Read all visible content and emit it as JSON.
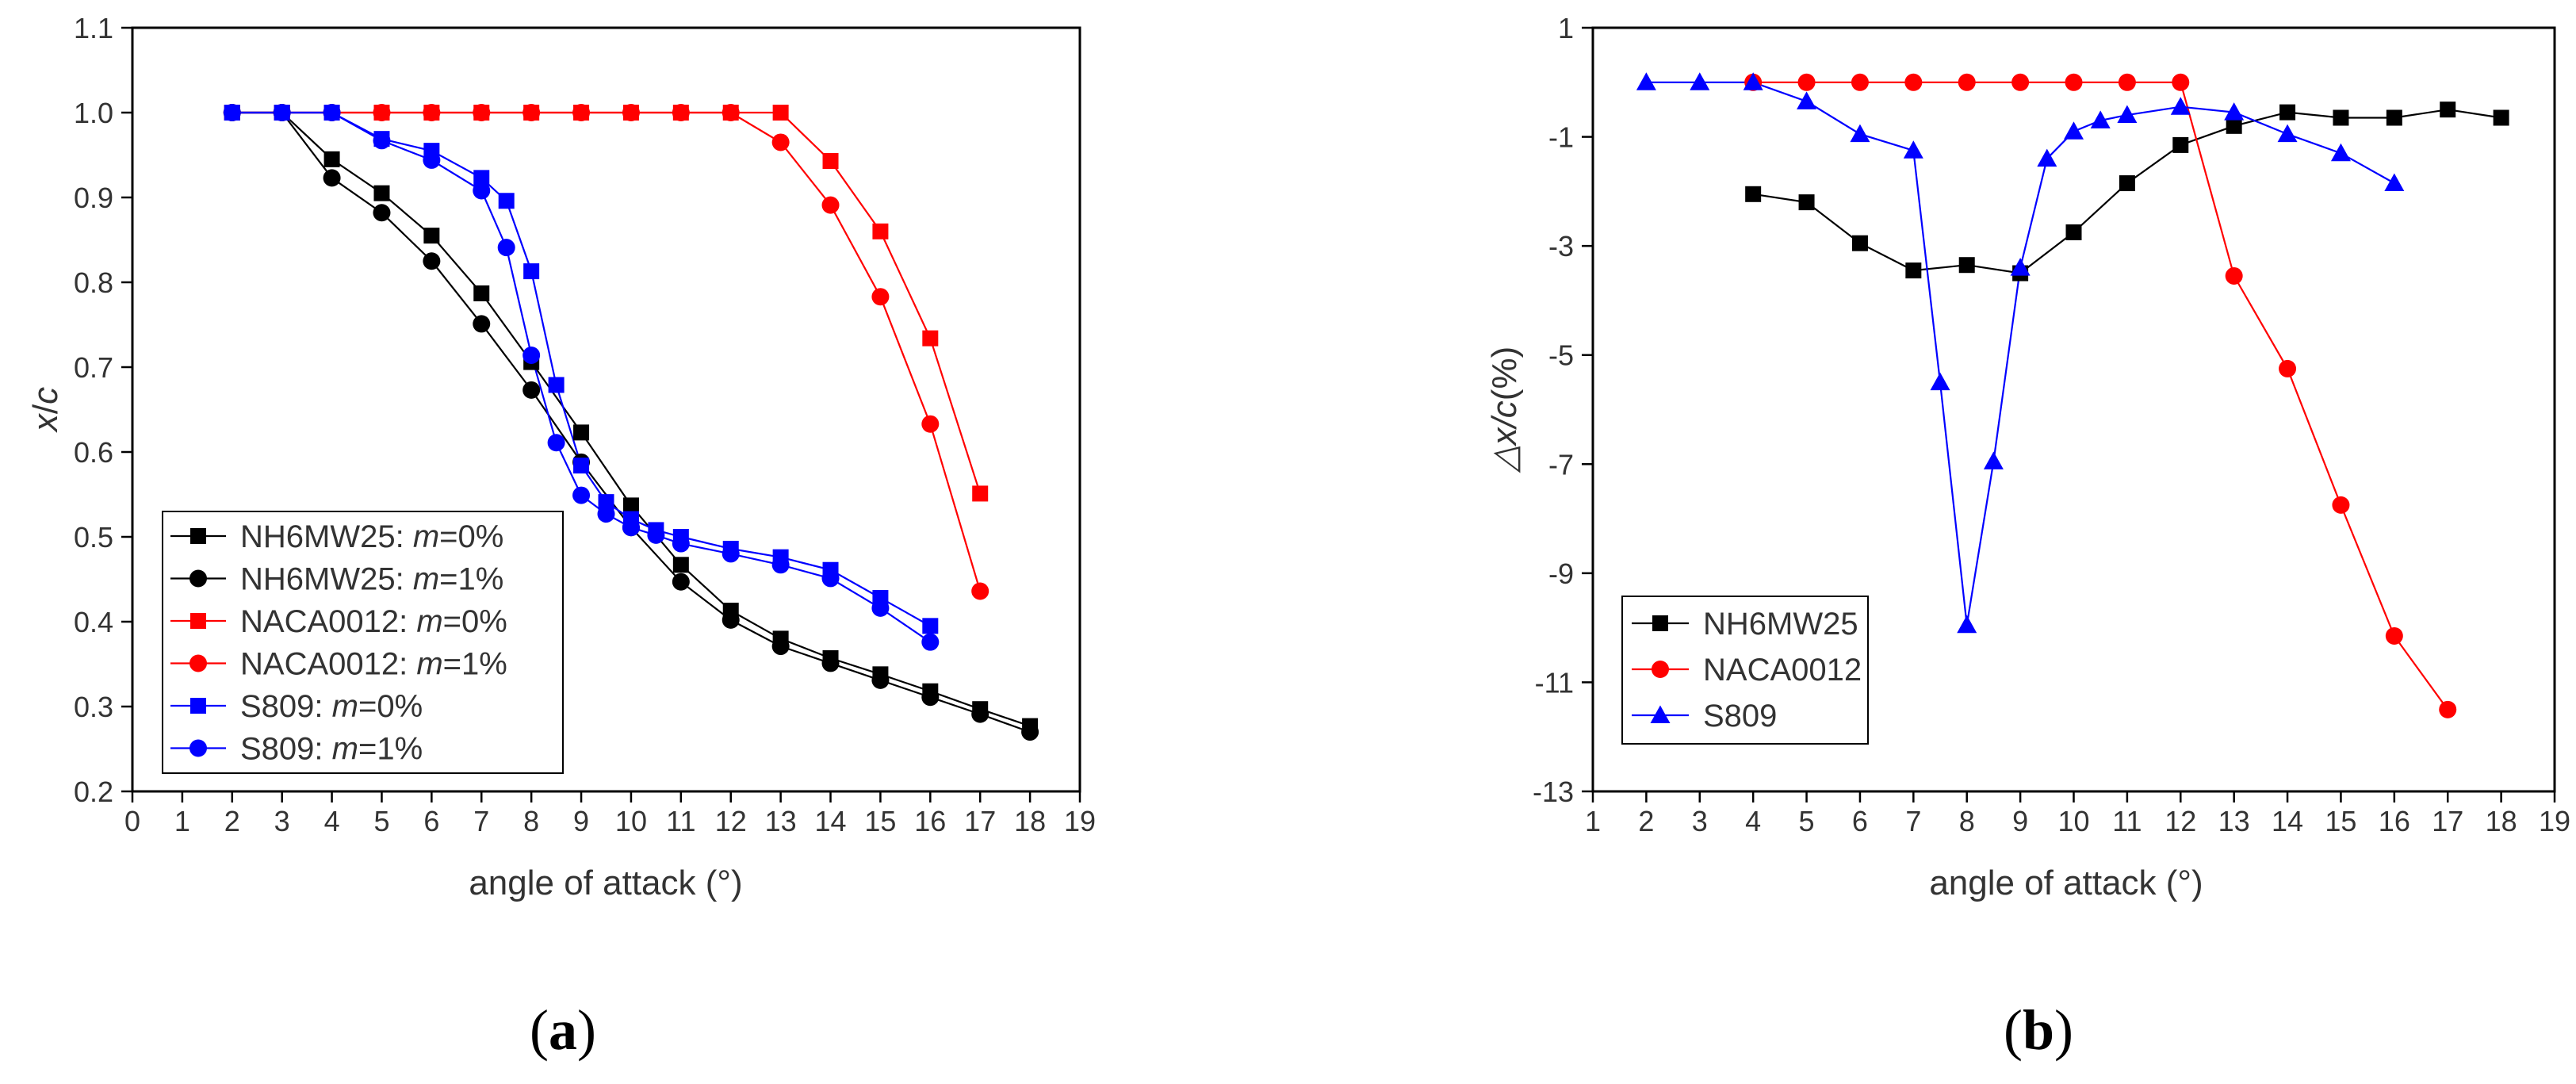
{
  "chart_data": [
    {
      "type": "line",
      "panel_label_open": "(",
      "panel_label_letter": "a",
      "panel_label_close": ")",
      "xlabel": "angle of attack (°)",
      "ylabel_var": "x",
      "ylabel_sep": "/",
      "ylabel_den": "c",
      "xlim": [
        0,
        19
      ],
      "ylim": [
        0.2,
        1.1
      ],
      "xticks": [
        "0",
        "1",
        "2",
        "3",
        "4",
        "5",
        "6",
        "7",
        "8",
        "9",
        "10",
        "11",
        "12",
        "13",
        "14",
        "15",
        "16",
        "17",
        "18",
        "19"
      ],
      "yticks": [
        "0.2",
        "0.3",
        "0.4",
        "0.5",
        "0.6",
        "0.7",
        "0.8",
        "0.9",
        "1.0",
        "1.1"
      ],
      "legend_position": "bottom-left",
      "series": [
        {
          "name_prefix": "NH6MW25: ",
          "name_var": "m",
          "name_suffix": "=0%",
          "color": "#000000",
          "marker": "square",
          "x": [
            2,
            3,
            4,
            5,
            6,
            7,
            8,
            9,
            10,
            11,
            12,
            13,
            14,
            15,
            16,
            17,
            18
          ],
          "y": [
            1.0,
            1.0,
            0.945,
            0.905,
            0.855,
            0.787,
            0.706,
            0.623,
            0.537,
            0.467,
            0.413,
            0.38,
            0.357,
            0.338,
            0.318,
            0.297,
            0.277
          ]
        },
        {
          "name_prefix": "NH6MW25: ",
          "name_var": "m",
          "name_suffix": "=1%",
          "color": "#000000",
          "marker": "circle",
          "x": [
            2,
            3,
            4,
            5,
            6,
            7,
            8,
            9,
            10,
            11,
            12,
            13,
            14,
            15,
            16,
            17,
            18
          ],
          "y": [
            1.0,
            1.0,
            0.923,
            0.882,
            0.825,
            0.751,
            0.673,
            0.588,
            0.511,
            0.447,
            0.402,
            0.371,
            0.351,
            0.331,
            0.311,
            0.291,
            0.27
          ]
        },
        {
          "name_prefix": "NACA0012: ",
          "name_var": "m",
          "name_suffix": "=0%",
          "color": "#ff0000",
          "marker": "square",
          "x": [
            2,
            3,
            4,
            5,
            6,
            7,
            8,
            9,
            10,
            11,
            12,
            13,
            14,
            15,
            16,
            17
          ],
          "y": [
            1.0,
            1.0,
            1.0,
            1.0,
            1.0,
            1.0,
            1.0,
            1.0,
            1.0,
            1.0,
            1.0,
            1.0,
            0.943,
            0.86,
            0.734,
            0.551
          ]
        },
        {
          "name_prefix": "NACA0012: ",
          "name_var": "m",
          "name_suffix": "=1%",
          "color": "#ff0000",
          "marker": "circle",
          "x": [
            2,
            3,
            4,
            5,
            6,
            7,
            8,
            9,
            10,
            11,
            12,
            13,
            14,
            15,
            16,
            17
          ],
          "y": [
            1.0,
            1.0,
            1.0,
            1.0,
            1.0,
            1.0,
            1.0,
            1.0,
            1.0,
            1.0,
            1.0,
            0.965,
            0.891,
            0.783,
            0.633,
            0.436
          ]
        },
        {
          "name_prefix": "S809: ",
          "name_var": "m",
          "name_suffix": "=0%",
          "color": "#0000ff",
          "marker": "square",
          "x": [
            2,
            3,
            4,
            5,
            6,
            7,
            7.5,
            8,
            8.5,
            9,
            9.5,
            10,
            10.5,
            11,
            12,
            13,
            14,
            15,
            16
          ],
          "y": [
            1.0,
            1.0,
            1.0,
            0.969,
            0.955,
            0.923,
            0.896,
            0.813,
            0.679,
            0.584,
            0.541,
            0.521,
            0.508,
            0.5,
            0.486,
            0.476,
            0.461,
            0.428,
            0.395
          ]
        },
        {
          "name_prefix": "S809: ",
          "name_var": "m",
          "name_suffix": "=1%",
          "color": "#0000ff",
          "marker": "circle",
          "x": [
            2,
            3,
            4,
            5,
            6,
            7,
            7.5,
            8,
            8.5,
            9,
            9.5,
            10,
            10.5,
            11,
            12,
            13,
            14,
            15,
            16
          ],
          "y": [
            1.0,
            1.0,
            1.0,
            0.967,
            0.944,
            0.908,
            0.841,
            0.714,
            0.611,
            0.549,
            0.527,
            0.511,
            0.502,
            0.492,
            0.48,
            0.467,
            0.451,
            0.416,
            0.376
          ]
        }
      ]
    },
    {
      "type": "line",
      "panel_label_open": "(",
      "panel_label_letter": "b",
      "panel_label_close": ")",
      "xlabel": "angle of attack (°)",
      "ylabel_var": "△x/c",
      "ylabel_suffix": "(%)",
      "xlim": [
        1,
        19
      ],
      "ylim": [
        -13,
        1
      ],
      "xticks": [
        "1",
        "2",
        "3",
        "4",
        "5",
        "6",
        "7",
        "8",
        "9",
        "10",
        "11",
        "12",
        "13",
        "14",
        "15",
        "16",
        "17",
        "18",
        "19"
      ],
      "yticks": [
        "-13",
        "-11",
        "-9",
        "-7",
        "-5",
        "-3",
        "-1",
        "1"
      ],
      "legend_position": "bottom-left",
      "series": [
        {
          "name": "NH6MW25",
          "color": "#000000",
          "marker": "square",
          "x": [
            4,
            5,
            6,
            7,
            8,
            9,
            10,
            11,
            12,
            13,
            14,
            15,
            16,
            17,
            18
          ],
          "y": [
            -2.05,
            -2.2,
            -2.95,
            -3.45,
            -3.35,
            -3.5,
            -2.75,
            -1.85,
            -1.15,
            -0.8,
            -0.55,
            -0.65,
            -0.65,
            -0.5,
            -0.65
          ]
        },
        {
          "name": "NACA0012",
          "color": "#ff0000",
          "marker": "circle",
          "x": [
            4,
            5,
            6,
            7,
            8,
            9,
            10,
            11,
            12,
            13,
            14,
            15,
            16,
            17
          ],
          "y": [
            0,
            0,
            0,
            0,
            0,
            0,
            0,
            0,
            0,
            -3.55,
            -5.25,
            -7.75,
            -10.15,
            -11.5
          ]
        },
        {
          "name": "S809",
          "color": "#0000ff",
          "marker": "triangle",
          "x": [
            2,
            3,
            4,
            5,
            6,
            7,
            7.5,
            8,
            8.5,
            9,
            9.5,
            10,
            10.5,
            11,
            12,
            13,
            14,
            15,
            16
          ],
          "y": [
            0,
            0,
            0,
            -0.35,
            -0.95,
            -1.25,
            -5.5,
            -9.95,
            -6.95,
            -3.4,
            -1.4,
            -0.9,
            -0.7,
            -0.6,
            -0.45,
            -0.55,
            -0.95,
            -1.3,
            -1.85
          ]
        }
      ]
    }
  ]
}
